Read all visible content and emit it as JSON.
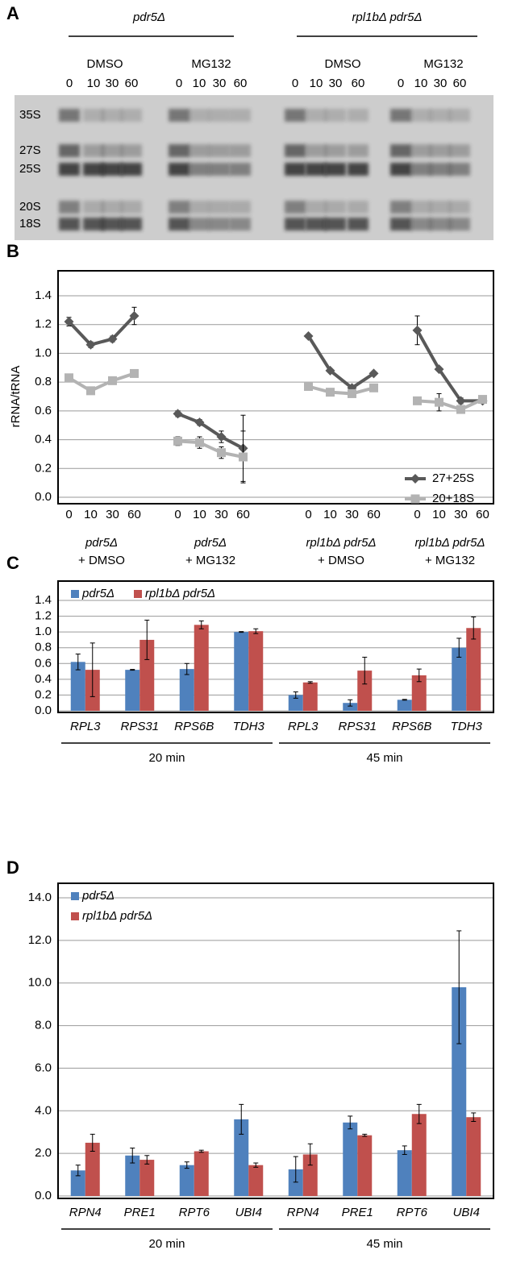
{
  "panel_a": {
    "label": "A",
    "strains": [
      "pdr5Δ",
      "rpl1bΔ pdr5Δ"
    ],
    "treatments": [
      "DMSO",
      "MG132",
      "DMSO",
      "MG132"
    ],
    "times": [
      "0",
      "10",
      "30",
      "60"
    ],
    "bands": [
      "35S",
      "27S",
      "25S",
      "20S",
      "18S"
    ]
  },
  "chart_data": [
    {
      "type": "line",
      "panel_label": "B",
      "ylabel": "rRNA/tRNA",
      "categories": [
        "0",
        "10",
        "30",
        "60",
        null,
        "0",
        "10",
        "30",
        "60",
        null,
        null,
        "0",
        "10",
        "30",
        "60",
        null,
        "0",
        "10",
        "30",
        "60"
      ],
      "groups": [
        {
          "strain": "pdr5Δ",
          "treatment": "+ DMSO"
        },
        {
          "strain": "pdr5Δ",
          "treatment": "+ MG132"
        },
        {
          "strain": "rpl1bΔ pdr5Δ",
          "treatment": "+ DMSO"
        },
        {
          "strain": "rpl1bΔ pdr5Δ",
          "treatment": "+ MG132"
        }
      ],
      "series": [
        {
          "name": "27+25S",
          "color": "#595959",
          "marker": "diamond",
          "values": [
            1.22,
            1.06,
            1.1,
            1.26,
            null,
            0.58,
            0.52,
            0.42,
            0.34,
            null,
            null,
            1.12,
            0.88,
            0.76,
            0.86,
            null,
            1.16,
            0.89,
            0.67,
            0.67
          ],
          "errors": [
            0.03,
            0.02,
            0.02,
            0.06,
            null,
            0.02,
            0.02,
            0.04,
            0.23,
            null,
            null,
            0.01,
            0.01,
            0.01,
            0.01,
            null,
            0.1,
            0.01,
            0.02,
            0.01
          ]
        },
        {
          "name": "20+18S",
          "color": "#b3b3b3",
          "marker": "square",
          "values": [
            0.83,
            0.74,
            0.81,
            0.86,
            null,
            0.39,
            0.38,
            0.31,
            0.28,
            null,
            null,
            0.77,
            0.73,
            0.72,
            0.76,
            null,
            0.67,
            0.66,
            0.61,
            0.68
          ],
          "errors": [
            0.02,
            0.01,
            0.02,
            0.02,
            null,
            0.03,
            0.04,
            0.04,
            0.18,
            null,
            null,
            0.01,
            0.01,
            0.01,
            0.01,
            null,
            0.02,
            0.06,
            0.02,
            0.02
          ]
        }
      ],
      "ylim": [
        0,
        1.4
      ],
      "yticks": [
        {
          "value": 0,
          "label": "0.0"
        },
        0.2,
        0.4,
        0.6,
        0.8,
        {
          "value": 1,
          "label": "1.0"
        },
        1.2,
        1.4
      ],
      "grid": true,
      "legend": "lower right"
    },
    {
      "type": "bar",
      "panel_label": "C",
      "categories": [
        "RPL3",
        "RPS31",
        "RPS6B",
        "TDH3",
        "RPL3",
        "RPS31",
        "RPS6B",
        "TDH3"
      ],
      "groups": [
        "20 min",
        "45 min"
      ],
      "series": [
        {
          "name": "pdr5Δ",
          "color": "#4f81bd",
          "values": [
            0.62,
            0.52,
            0.53,
            1.0,
            0.2,
            0.1,
            0.14,
            0.8
          ],
          "errors": [
            0.1,
            0.005,
            0.07,
            0.005,
            0.04,
            0.04,
            0.005,
            0.12
          ]
        },
        {
          "name": "rpl1bΔ pdr5Δ",
          "color": "#c0504d",
          "values": [
            0.52,
            0.9,
            1.09,
            1.01,
            0.36,
            0.51,
            0.45,
            1.05
          ],
          "errors": [
            0.34,
            0.25,
            0.05,
            0.03,
            0.01,
            0.17,
            0.08,
            0.14
          ]
        }
      ],
      "ylim": [
        0,
        1.4
      ],
      "yticks": [
        {
          "value": 0,
          "label": "0.0"
        },
        0.2,
        0.4,
        0.6,
        0.8,
        {
          "value": 1,
          "label": "1.0"
        },
        1.2,
        1.4
      ],
      "grid": true,
      "legend": "upper left horizontal"
    },
    {
      "type": "bar",
      "panel_label": "D",
      "categories": [
        "RPN4",
        "PRE1",
        "RPT6",
        "UBI4",
        "RPN4",
        "PRE1",
        "RPT6",
        "UBI4"
      ],
      "groups": [
        "20 min",
        "45 min"
      ],
      "series": [
        {
          "name": "pdr5Δ",
          "color": "#4f81bd",
          "values": [
            1.2,
            1.9,
            1.45,
            3.6,
            1.25,
            3.45,
            2.15,
            9.8
          ],
          "errors": [
            0.25,
            0.35,
            0.15,
            0.7,
            0.6,
            0.3,
            0.2,
            2.65
          ]
        },
        {
          "name": "rpl1bΔ pdr5Δ",
          "color": "#c0504d",
          "values": [
            2.5,
            1.7,
            2.1,
            1.45,
            1.95,
            2.85,
            3.85,
            3.7
          ],
          "errors": [
            0.4,
            0.2,
            0.05,
            0.1,
            0.5,
            0.05,
            0.45,
            0.2
          ]
        }
      ],
      "ylim": [
        0,
        14
      ],
      "yticks": [
        {
          "value": 0,
          "label": "0.0"
        },
        {
          "value": 2,
          "label": "2.0"
        },
        {
          "value": 4,
          "label": "4.0"
        },
        {
          "value": 6,
          "label": "6.0"
        },
        {
          "value": 8,
          "label": "8.0"
        },
        {
          "value": 10,
          "label": "10.0"
        },
        {
          "value": 12,
          "label": "12.0"
        },
        {
          "value": 14,
          "label": "14.0"
        }
      ],
      "grid": true,
      "legend": "upper left vertical"
    }
  ]
}
